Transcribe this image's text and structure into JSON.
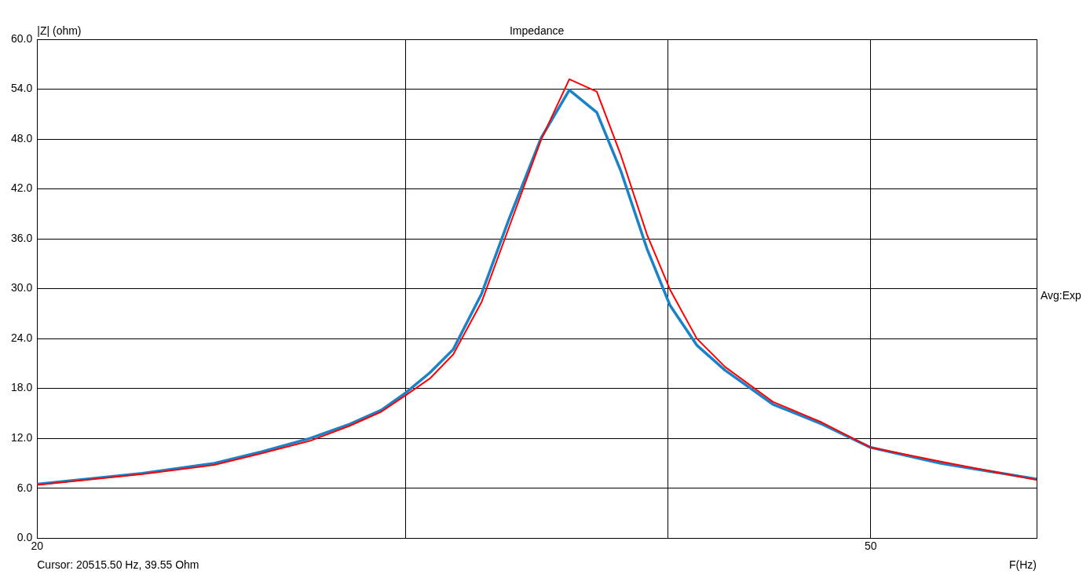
{
  "chart_data": {
    "type": "line",
    "title": "Impedance",
    "xlabel": "F(Hz)",
    "ylabel": "|Z| (ohm)",
    "annotations": [
      "Avg:Exp",
      "Cursor: 20515.50 Hz, 39.55 Ohm"
    ],
    "log": "x",
    "grid": true,
    "legend": false,
    "marker": "none",
    "line_style": "solid",
    "xlim": [
      20,
      60
    ],
    "xticks": [
      20,
      {
        "value": 30,
        "label": null
      },
      {
        "value": 40,
        "label": null
      },
      50,
      {
        "value": 60,
        "label": null
      }
    ],
    "ylim": [
      0,
      60
    ],
    "yticks": [
      {
        "value": 0,
        "label": "0.0"
      },
      {
        "value": 6,
        "label": "6.0"
      },
      {
        "value": 12,
        "label": "12.0"
      },
      {
        "value": 18,
        "label": "18.0"
      },
      {
        "value": 24,
        "label": "24.0"
      },
      {
        "value": 30,
        "label": "30.0"
      },
      {
        "value": 36,
        "label": "36.0"
      },
      {
        "value": 42,
        "label": "42.0"
      },
      {
        "value": 48,
        "label": "48.0"
      },
      {
        "value": 54,
        "label": "54.0"
      },
      {
        "value": 60,
        "label": "60.0"
      }
    ],
    "series": [
      {
        "color": "#1a82c8",
        "x": [
          20,
          22.45,
          24.3,
          25.6,
          27.0,
          28.2,
          29.2,
          30,
          30.8,
          31.6,
          32.6,
          33.6,
          34.8,
          35.9,
          37.0,
          38.0,
          39.1,
          40.1,
          41.3,
          42.6,
          44.9,
          47.4,
          50,
          54.0,
          60
        ],
        "values": [
          6.5,
          7.8,
          9.0,
          10.4,
          12.0,
          13.7,
          15.4,
          17.5,
          19.9,
          22.7,
          29.4,
          38.4,
          48.1,
          53.9,
          51.2,
          44.1,
          34.8,
          28.0,
          23.2,
          20.2,
          16.1,
          13.7,
          10.9,
          9.0,
          7.1
        ]
      },
      {
        "color": "#ff0000",
        "x": [
          20,
          22.45,
          24.3,
          25.6,
          27.0,
          28.2,
          29.2,
          30,
          30.8,
          31.6,
          32.6,
          33.6,
          34.8,
          35.9,
          37.0,
          38.0,
          39.1,
          40.1,
          41.3,
          42.6,
          44.9,
          47.4,
          50,
          54.0,
          60
        ],
        "values": [
          6.4,
          7.7,
          8.8,
          10.2,
          11.7,
          13.5,
          15.2,
          17.2,
          19.2,
          22.1,
          28.4,
          37.4,
          47.9,
          55.2,
          53.7,
          46.0,
          36.5,
          29.9,
          24.0,
          20.6,
          16.4,
          13.9,
          10.9,
          9.2,
          7.0
        ]
      }
    ]
  }
}
